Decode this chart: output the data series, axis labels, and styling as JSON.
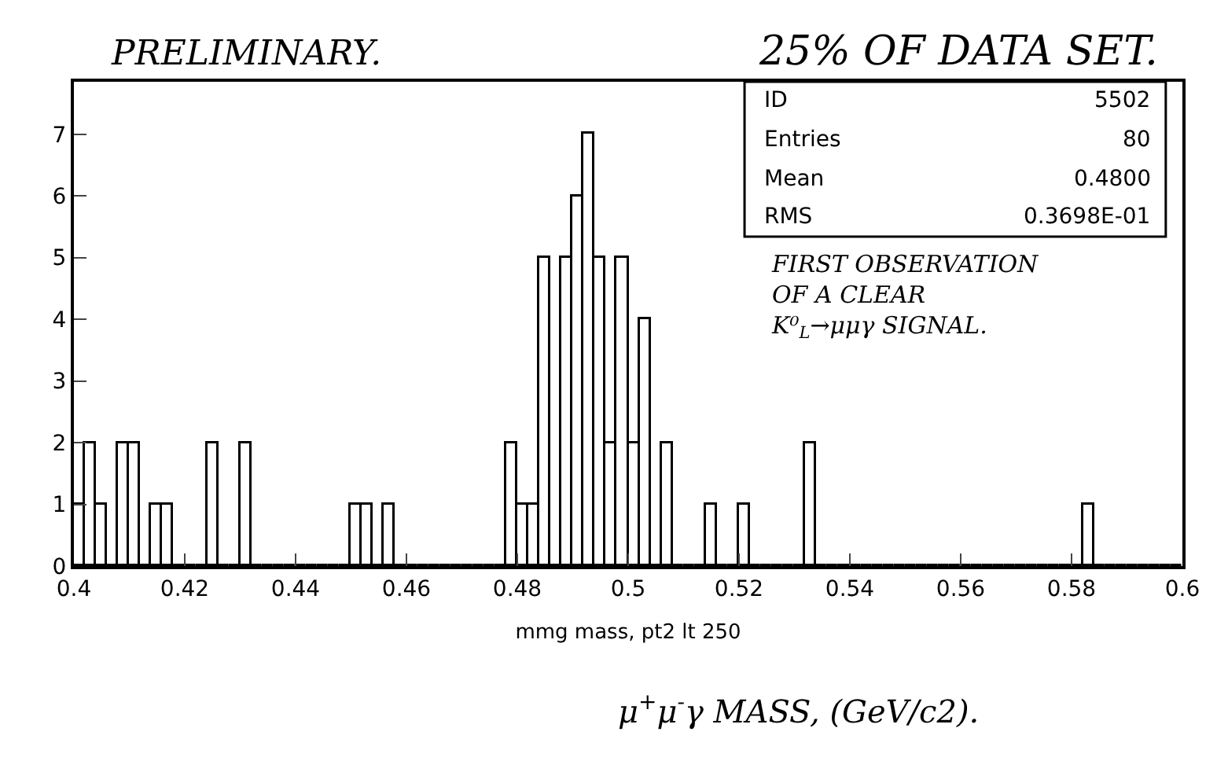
{
  "chart_data": {
    "type": "histogram",
    "title": "PRELIMINARY.",
    "subtitle": "25% OF DATA SET.",
    "xlabel": "mmg mass, pt2 lt 250",
    "bins": [
      0.4,
      0.402,
      0.404,
      0.406,
      0.408,
      0.41,
      0.412,
      0.414,
      0.416,
      0.418,
      0.42,
      0.422,
      0.424,
      0.426,
      0.428,
      0.43,
      0.432,
      0.434,
      0.436,
      0.438,
      0.44,
      0.442,
      0.444,
      0.446,
      0.448,
      0.45,
      0.452,
      0.454,
      0.456,
      0.458,
      0.46,
      0.462,
      0.464,
      0.466,
      0.468,
      0.47,
      0.472,
      0.474,
      0.476,
      0.478,
      0.48,
      0.482,
      0.484,
      0.486,
      0.488,
      0.49,
      0.492,
      0.494,
      0.496,
      0.498,
      0.5,
      0.502,
      0.504,
      0.506,
      0.508,
      0.51,
      0.512,
      0.514,
      0.516,
      0.518,
      0.52,
      0.522,
      0.524,
      0.526,
      0.528,
      0.53,
      0.532,
      0.534,
      0.536,
      0.538,
      0.54,
      0.542,
      0.544,
      0.546,
      0.548,
      0.55,
      0.552,
      0.554,
      0.556,
      0.558,
      0.56,
      0.562,
      0.564,
      0.566,
      0.568,
      0.57,
      0.572,
      0.574,
      0.576,
      0.578,
      0.58,
      0.582,
      0.584,
      0.586,
      0.588,
      0.59,
      0.592,
      0.594,
      0.596,
      0.598,
      0.6
    ],
    "values": [
      1,
      2,
      1,
      0,
      2,
      2,
      0,
      1,
      1,
      0,
      0,
      0,
      2,
      0,
      0,
      2,
      0,
      0,
      0,
      0,
      0,
      0,
      0,
      0,
      0,
      1,
      1,
      0,
      1,
      0,
      0,
      0,
      0,
      0,
      0,
      0,
      0,
      0,
      0,
      2,
      1,
      1,
      5,
      0,
      5,
      6,
      7,
      5,
      2,
      5,
      2,
      4,
      0,
      2,
      0,
      0,
      0,
      1,
      0,
      0,
      1,
      0,
      0,
      0,
      0,
      0,
      2,
      0,
      0,
      0,
      0,
      0,
      0,
      0,
      0,
      0,
      0,
      0,
      0,
      0,
      0,
      0,
      0,
      0,
      0,
      0,
      0,
      0,
      0,
      0,
      0,
      1,
      0,
      0,
      0,
      0,
      0,
      0,
      0,
      0
    ],
    "color": "#000000",
    "xlim": [
      0.4,
      0.6
    ],
    "xticks": [
      {
        "value": 0.4,
        "label": "0.4"
      },
      0.42,
      0.44,
      0.46,
      0.48,
      {
        "value": 0.5,
        "label": "0.5"
      },
      0.52,
      0.54,
      0.56,
      0.58,
      {
        "value": 0.6,
        "label": "0.6"
      }
    ],
    "ylim": [
      0,
      7.85
    ],
    "yticks": [
      0,
      1,
      2,
      3,
      4,
      5,
      6,
      7
    ],
    "grid": false,
    "annotations": [
      "ID",
      "5502",
      "Entries",
      "80",
      "Mean",
      "0.4800",
      "RMS",
      "0.3698E-01",
      "FIRST OBSERVATION\nOF A CLEAR\nK⁰$_{L}$→μμγ SIGNAL.",
      "μ$^{+}$μ$^{-}$γ MASS, (GeV/c2)."
    ]
  }
}
